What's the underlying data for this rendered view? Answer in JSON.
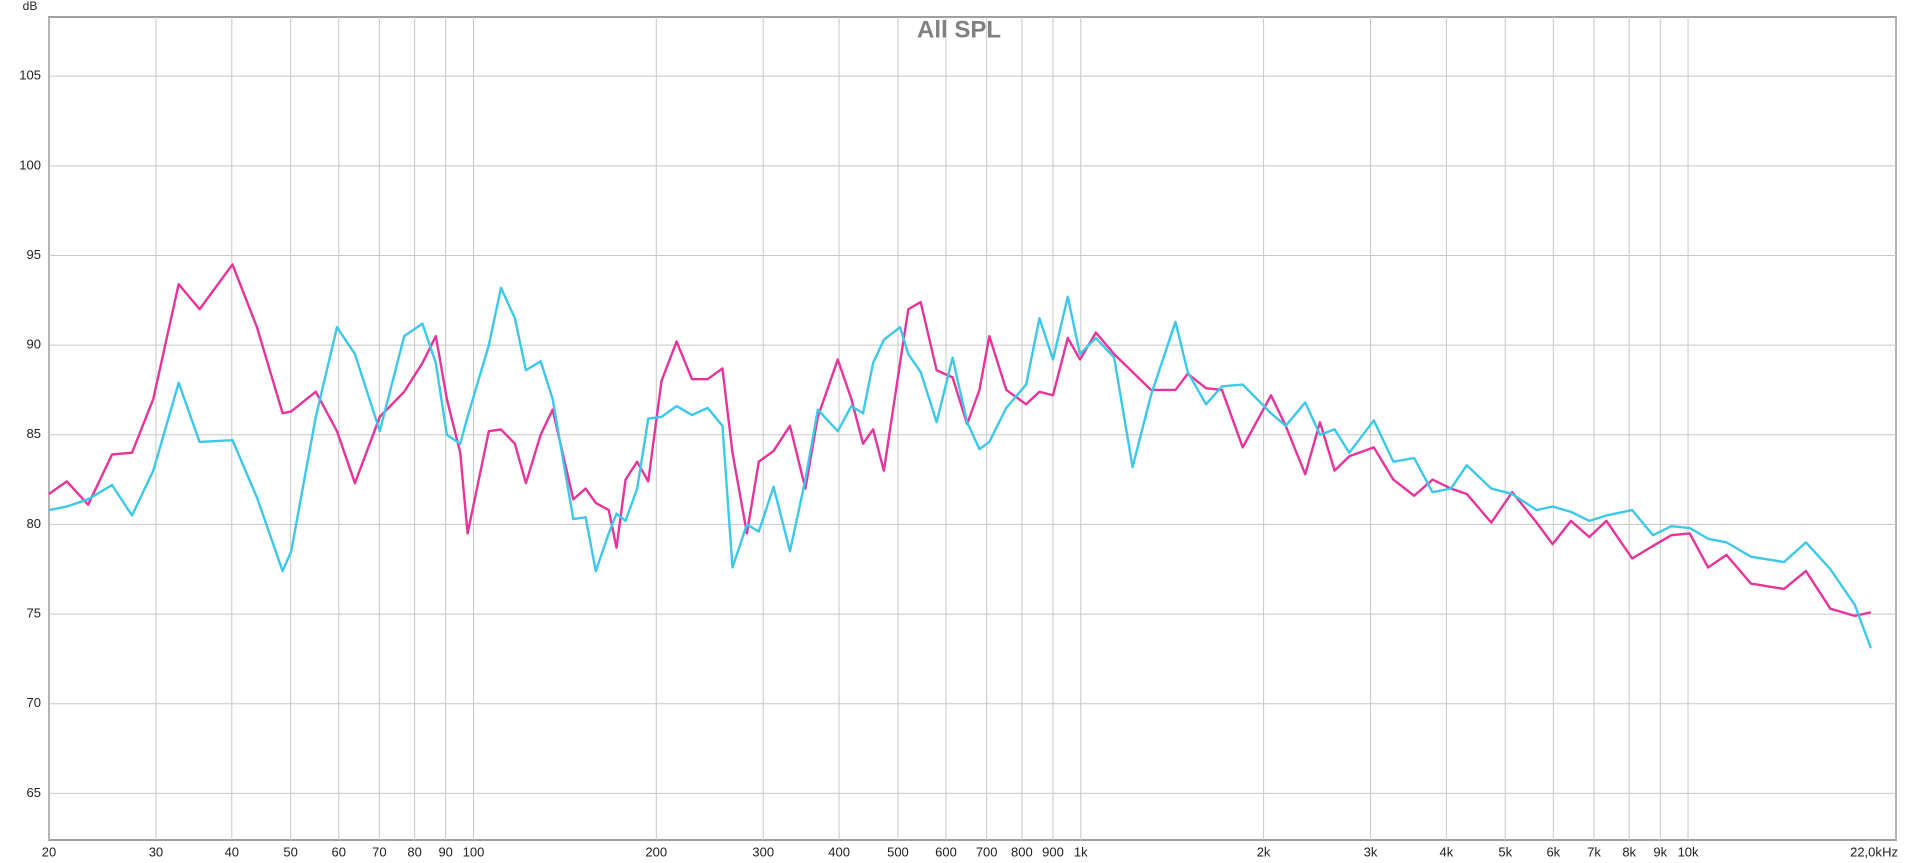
{
  "chart_data": {
    "type": "line",
    "title": "All SPL",
    "y_label": "dB",
    "x_label": "Hz",
    "x_scale": "log",
    "grid": true,
    "xlim": [
      20,
      22000
    ],
    "ylim": [
      62.4,
      108.3
    ],
    "xticks": [
      20,
      30,
      40,
      50,
      60,
      70,
      80,
      90,
      100,
      200,
      300,
      400,
      500,
      600,
      700,
      800,
      900,
      {
        "value": 1000,
        "label": "1k"
      },
      {
        "value": 2000,
        "label": "2k"
      },
      {
        "value": 3000,
        "label": "3k"
      },
      {
        "value": 4000,
        "label": "4k"
      },
      {
        "value": 5000,
        "label": "5k"
      },
      {
        "value": 6000,
        "label": "6k"
      },
      {
        "value": 7000,
        "label": "7k"
      },
      {
        "value": 8000,
        "label": "8k"
      },
      {
        "value": 9000,
        "label": "9k"
      },
      {
        "value": 10000,
        "label": "10k"
      },
      {
        "value": 22000,
        "label": "22,0k"
      }
    ],
    "yticks": [
      65,
      70,
      75,
      80,
      85,
      90,
      95,
      100,
      105
    ],
    "x": [
      20,
      21.4,
      23.2,
      25.4,
      27.4,
      29.7,
      32.7,
      35.4,
      40.1,
      44.0,
      48.5,
      50.1,
      55.0,
      59.6,
      63.8,
      70.1,
      76.9,
      82.4,
      86.7,
      90.4,
      95.1,
      97.8,
      106,
      111,
      117,
      122,
      129,
      135,
      146,
      153,
      159,
      167,
      172,
      178,
      186,
      194,
      204,
      216,
      229,
      243,
      257,
      267,
      282,
      295,
      312,
      332,
      352,
      369,
      398,
      419,
      438,
      455,
      474,
      504,
      520,
      545,
      579,
      615,
      650,
      681,
      707,
      754,
      813,
      855,
      900,
      952,
      997,
      1059,
      1135,
      1217,
      1305,
      1432,
      1500,
      1608,
      1708,
      1848,
      2057,
      2175,
      2342,
      2477,
      2618,
      2768,
      3038,
      3271,
      3540,
      3795,
      4069,
      4322,
      4743,
      5133,
      5633,
      5983,
      6414,
      6877,
      7337,
      8092,
      8755,
      9387,
      10064,
      10790,
      11569,
      12694,
      14386,
      15635,
      17155,
      18825,
      20000
    ],
    "series": [
      {
        "color": "#e8339b",
        "values": [
          81.7,
          82.4,
          81.1,
          83.9,
          84.0,
          87,
          93.4,
          92.0,
          94.5,
          91,
          86.2,
          86.3,
          87.4,
          85.2,
          82.3,
          86,
          87.4,
          89,
          90.5,
          87,
          84,
          79.5,
          85.2,
          85.3,
          84.5,
          82.3,
          85,
          86.4,
          81.4,
          82,
          81.2,
          80.8,
          78.7,
          82.5,
          83.5,
          82.4,
          88,
          90.2,
          88.1,
          88.1,
          88.7,
          84,
          79.5,
          83.5,
          84.1,
          85.5,
          82,
          86,
          89.2,
          87,
          84.5,
          85.3,
          83,
          89,
          92,
          92.4,
          88.6,
          88.2,
          85.6,
          87.5,
          90.5,
          87.5,
          86.7,
          87.4,
          87.2,
          90.4,
          89.2,
          90.7,
          89.5,
          88.5,
          87.5,
          87.5,
          88.4,
          87.6,
          87.5,
          84.3,
          87.2,
          85.5,
          82.8,
          85.7,
          83,
          83.8,
          84.3,
          82.5,
          81.6,
          82.5,
          82,
          81.7,
          80.1,
          81.8,
          80.1,
          78.9,
          80.2,
          79.3,
          80.2,
          78.1,
          78.8,
          79.4,
          79.5,
          77.6,
          78.3,
          76.7,
          76.4,
          77.4,
          75.3,
          74.9,
          75.1
        ]
      },
      {
        "color": "#3cc8e8",
        "values": [
          80.8,
          81.0,
          81.4,
          82.2,
          80.5,
          83,
          87.9,
          84.6,
          84.7,
          81.5,
          77.4,
          78.5,
          86,
          91.0,
          89.5,
          85.2,
          90.5,
          91.2,
          89,
          85,
          84.5,
          86,
          90,
          93.2,
          91.5,
          88.6,
          89.1,
          87,
          80.3,
          80.4,
          77.4,
          79.5,
          80.6,
          80.2,
          82,
          85.9,
          86,
          86.6,
          86.1,
          86.5,
          85.5,
          77.6,
          80,
          79.6,
          82.1,
          78.5,
          82.5,
          86.4,
          85.2,
          86.6,
          86.2,
          89,
          90.3,
          91,
          89.5,
          88.5,
          85.7,
          89.3,
          85.7,
          84.2,
          84.6,
          86.5,
          87.8,
          91.5,
          89.2,
          92.7,
          89.5,
          90.4,
          89.3,
          83.2,
          87.2,
          91.3,
          88.5,
          86.7,
          87.7,
          87.8,
          86.2,
          85.5,
          86.8,
          85,
          85.3,
          84,
          85.8,
          83.5,
          83.7,
          81.8,
          82,
          83.3,
          82,
          81.7,
          80.8,
          81,
          80.7,
          80.2,
          80.5,
          80.8,
          79.4,
          79.9,
          79.8,
          79.2,
          79,
          78.2,
          77.9,
          79,
          77.5,
          75.5,
          73.1
        ]
      }
    ]
  }
}
